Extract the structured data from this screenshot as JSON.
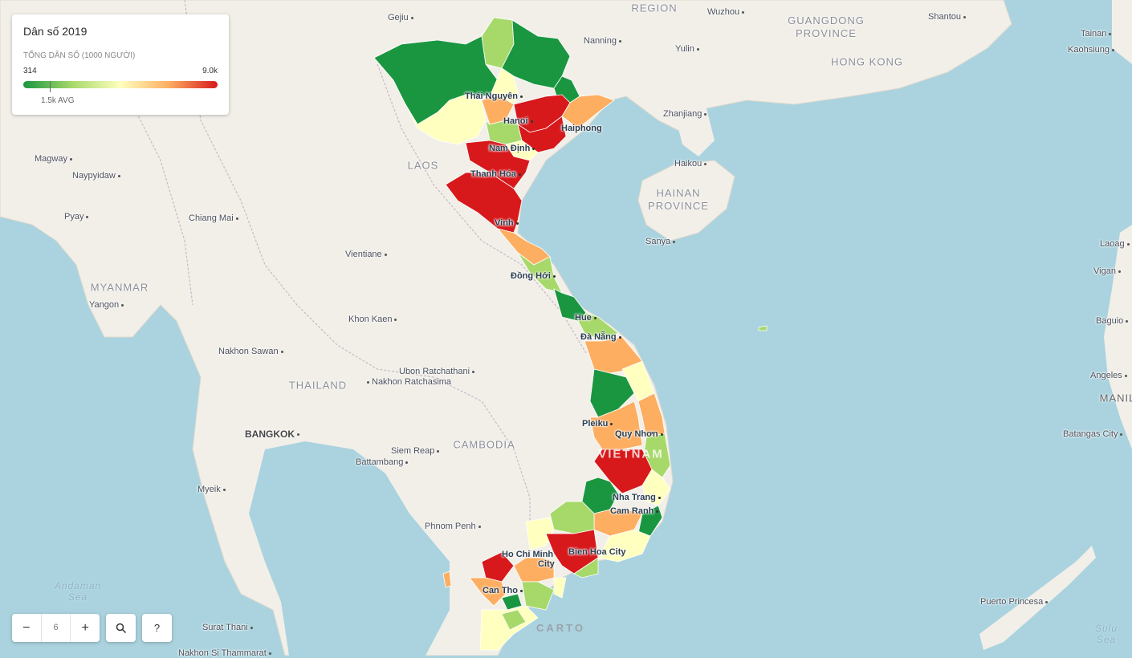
{
  "legend": {
    "title": "Dân số 2019",
    "subtitle": "TỔNG DÂN SỐ (1000 NGƯỜI)",
    "min": "314",
    "max": "9.0k",
    "avg": "1.5k AVG"
  },
  "colors": {
    "water": "#aad3df",
    "land": "#f2efe9",
    "scale": [
      "#1a9641",
      "#a6d96a",
      "#ffffbf",
      "#fdae61",
      "#d7191c"
    ]
  },
  "controls": {
    "zoom_level": "6",
    "zoom_out": "−",
    "zoom_in": "+",
    "search_icon": "search-icon",
    "help": "?"
  },
  "attribution": "CARTO",
  "regions": {
    "region": "REGION",
    "guangdong": "GUANGDONG\nPROVINCE",
    "hongkong": "HONG KONG",
    "hainan": "HAINAN\nPROVINCE",
    "laos": "LAOS",
    "myanmar": "MYANMAR",
    "thailand": "THAILAND",
    "cambodia": "CAMBODIA",
    "vietnam": "VIETNAM",
    "manila": "MANIL",
    "andaman": "Andaman\nSea",
    "sulu": "Sulu\nSea"
  },
  "cities": {
    "gejiu": "Gejiu",
    "wuzhou": "Wuzhou",
    "shantou": "Shantou",
    "tainan": "Tainan",
    "kaohsiung": "Kaohsiung",
    "nanning": "Nanning",
    "yulin": "Yulin",
    "zhanjiang": "Zhanjiang",
    "haikou": "Haikou",
    "sanya": "Sanya",
    "magway": "Magway",
    "naypyidaw": "Naypyidaw",
    "pyay": "Pyay",
    "chiangmai": "Chiang Mai",
    "vientiane": "Vientiane",
    "yangon": "Yangon",
    "khonkaen": "Khon Kaen",
    "nakhonsawan": "Nakhon Sawan",
    "ubon": "Ubon Ratchathani",
    "nakhonratchasima": "Nakhon Ratchasima",
    "bangkok": "BANGKOK",
    "siemreap": "Siem Reap",
    "battambang": "Battambang",
    "myeik": "Myeik",
    "phnompenh": "Phnom Penh",
    "suratthani": "Surat Thani",
    "nakhonsi": "Nakhon Si Thammarat",
    "laoag": "Laoag",
    "vigan": "Vigan",
    "baguio": "Baguio",
    "angeles": "Angeles",
    "batangas": "Batangas City",
    "puerto": "Puerto Princesa"
  },
  "vn_cities": {
    "thainguyen": "Thái Nguyên",
    "hanoi": "Hanoi",
    "haiphong": "Haiphong",
    "namdinh": "Nam Định",
    "thanhhoa": "Thanh Hóa",
    "vinh": "Vinh",
    "donghoi": "Đồng Hới",
    "hue": "Hue",
    "danang": "Đà Nẵng",
    "pleiku": "Pleiku",
    "quynhon": "Quy Nhơn",
    "nhatrang": "Nha Trang",
    "camranh": "Cam Ranh",
    "bienhoa": "Bien Hoa City",
    "hcm1": "Ho Chi Minh",
    "hcm2": "City",
    "cantho": "Can Tho"
  }
}
